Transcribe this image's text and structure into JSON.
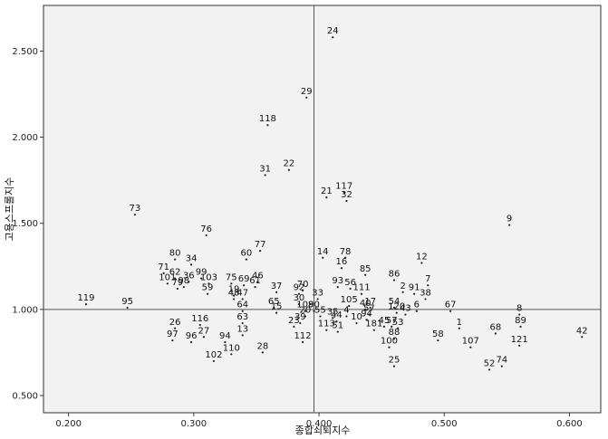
{
  "chart_data": {
    "type": "scatter",
    "title": "",
    "xlabel": "종합쇠퇴지수",
    "ylabel": "고용스프롤지수",
    "xlim": [
      0.18,
      0.625
    ],
    "ylim": [
      0.4,
      2.765
    ],
    "xticks": [
      0.2,
      0.3,
      0.4,
      0.5,
      0.6
    ],
    "xtick_labels": [
      "0.200",
      "0.300",
      "0.400",
      "0.500",
      "0.600"
    ],
    "yticks": [
      0.5,
      1.0,
      1.5,
      2.0,
      2.5
    ],
    "ytick_labels": [
      "0.500",
      "1.000",
      "1.500",
      "2.000",
      "2.500"
    ],
    "reference_lines": {
      "x": 0.396,
      "y": 1.0
    },
    "grid": false,
    "points": [
      {
        "label": "24",
        "x": 0.411,
        "y": 2.58
      },
      {
        "label": "29",
        "x": 0.39,
        "y": 2.23
      },
      {
        "label": "118",
        "x": 0.359,
        "y": 2.07
      },
      {
        "label": "22",
        "x": 0.376,
        "y": 1.81
      },
      {
        "label": "31",
        "x": 0.357,
        "y": 1.78
      },
      {
        "label": "117",
        "x": 0.42,
        "y": 1.68
      },
      {
        "label": "21",
        "x": 0.406,
        "y": 1.65
      },
      {
        "label": "32",
        "x": 0.422,
        "y": 1.63
      },
      {
        "label": "73",
        "x": 0.253,
        "y": 1.55
      },
      {
        "label": "9",
        "x": 0.552,
        "y": 1.49
      },
      {
        "label": "76",
        "x": 0.31,
        "y": 1.43
      },
      {
        "label": "77",
        "x": 0.353,
        "y": 1.34
      },
      {
        "label": "80",
        "x": 0.285,
        "y": 1.29
      },
      {
        "label": "34",
        "x": 0.298,
        "y": 1.26
      },
      {
        "label": "60",
        "x": 0.342,
        "y": 1.29
      },
      {
        "label": "14",
        "x": 0.403,
        "y": 1.3
      },
      {
        "label": "78",
        "x": 0.421,
        "y": 1.3
      },
      {
        "label": "12",
        "x": 0.482,
        "y": 1.27
      },
      {
        "label": "71",
        "x": 0.276,
        "y": 1.21
      },
      {
        "label": "16",
        "x": 0.418,
        "y": 1.24
      },
      {
        "label": "62",
        "x": 0.285,
        "y": 1.18
      },
      {
        "label": "99",
        "x": 0.306,
        "y": 1.18
      },
      {
        "label": "85",
        "x": 0.437,
        "y": 1.2
      },
      {
        "label": "86",
        "x": 0.46,
        "y": 1.17
      },
      {
        "label": "7",
        "x": 0.487,
        "y": 1.14
      },
      {
        "label": "101",
        "x": 0.279,
        "y": 1.15
      },
      {
        "label": "36",
        "x": 0.296,
        "y": 1.16
      },
      {
        "label": "103",
        "x": 0.312,
        "y": 1.15
      },
      {
        "label": "75",
        "x": 0.33,
        "y": 1.15
      },
      {
        "label": "69",
        "x": 0.34,
        "y": 1.14
      },
      {
        "label": "46",
        "x": 0.351,
        "y": 1.16
      },
      {
        "label": "79",
        "x": 0.287,
        "y": 1.12
      },
      {
        "label": "98",
        "x": 0.292,
        "y": 1.13
      },
      {
        "label": "59",
        "x": 0.311,
        "y": 1.09
      },
      {
        "label": "61",
        "x": 0.349,
        "y": 1.13
      },
      {
        "label": "70",
        "x": 0.387,
        "y": 1.11
      },
      {
        "label": "93",
        "x": 0.415,
        "y": 1.13
      },
      {
        "label": "56",
        "x": 0.425,
        "y": 1.12
      },
      {
        "label": "2",
        "x": 0.467,
        "y": 1.1
      },
      {
        "label": "91",
        "x": 0.476,
        "y": 1.09
      },
      {
        "label": "37",
        "x": 0.366,
        "y": 1.1
      },
      {
        "label": "92",
        "x": 0.384,
        "y": 1.09
      },
      {
        "label": "111",
        "x": 0.434,
        "y": 1.09
      },
      {
        "label": "38",
        "x": 0.485,
        "y": 1.06
      },
      {
        "label": "19",
        "x": 0.332,
        "y": 1.08
      },
      {
        "label": "48",
        "x": 0.332,
        "y": 1.06
      },
      {
        "label": "47",
        "x": 0.339,
        "y": 1.06
      },
      {
        "label": "33",
        "x": 0.399,
        "y": 1.06
      },
      {
        "label": "119",
        "x": 0.214,
        "y": 1.03
      },
      {
        "label": "95",
        "x": 0.247,
        "y": 1.01
      },
      {
        "label": "30",
        "x": 0.384,
        "y": 1.03
      },
      {
        "label": "65",
        "x": 0.364,
        "y": 1.01
      },
      {
        "label": "105",
        "x": 0.424,
        "y": 1.02
      },
      {
        "label": "64",
        "x": 0.339,
        "y": 0.99
      },
      {
        "label": "15",
        "x": 0.366,
        "y": 0.98
      },
      {
        "label": "108",
        "x": 0.389,
        "y": 0.99
      },
      {
        "label": "90",
        "x": 0.396,
        "y": 0.99
      },
      {
        "label": "40",
        "x": 0.437,
        "y": 1.0
      },
      {
        "label": "17",
        "x": 0.441,
        "y": 1.01
      },
      {
        "label": "54",
        "x": 0.46,
        "y": 1.01
      },
      {
        "label": "67",
        "x": 0.505,
        "y": 0.99
      },
      {
        "label": "8",
        "x": 0.56,
        "y": 0.97
      },
      {
        "label": "120",
        "x": 0.462,
        "y": 0.98
      },
      {
        "label": "6",
        "x": 0.478,
        "y": 0.99
      },
      {
        "label": "20",
        "x": 0.389,
        "y": 0.96
      },
      {
        "label": "55",
        "x": 0.401,
        "y": 0.96
      },
      {
        "label": "35",
        "x": 0.411,
        "y": 0.95
      },
      {
        "label": "4",
        "x": 0.422,
        "y": 0.96
      },
      {
        "label": "57",
        "x": 0.44,
        "y": 0.97
      },
      {
        "label": "43",
        "x": 0.469,
        "y": 0.97
      },
      {
        "label": "63",
        "x": 0.339,
        "y": 0.92
      },
      {
        "label": "116",
        "x": 0.305,
        "y": 0.91
      },
      {
        "label": "39",
        "x": 0.385,
        "y": 0.92
      },
      {
        "label": "23",
        "x": 0.38,
        "y": 0.9
      },
      {
        "label": "44",
        "x": 0.414,
        "y": 0.93
      },
      {
        "label": "94",
        "x": 0.438,
        "y": 0.94
      },
      {
        "label": "10",
        "x": 0.43,
        "y": 0.92
      },
      {
        "label": "89",
        "x": 0.561,
        "y": 0.9
      },
      {
        "label": "26",
        "x": 0.285,
        "y": 0.89
      },
      {
        "label": "113",
        "x": 0.406,
        "y": 0.88
      },
      {
        "label": "51",
        "x": 0.415,
        "y": 0.87
      },
      {
        "label": "45",
        "x": 0.452,
        "y": 0.9
      },
      {
        "label": "57b",
        "x": 0.458,
        "y": 0.9
      },
      {
        "label": "53",
        "x": 0.463,
        "y": 0.89
      },
      {
        "label": "1",
        "x": 0.512,
        "y": 0.89
      },
      {
        "label": "68",
        "x": 0.541,
        "y": 0.86
      },
      {
        "label": "181",
        "x": 0.444,
        "y": 0.88
      },
      {
        "label": "13",
        "x": 0.339,
        "y": 0.85
      },
      {
        "label": "27",
        "x": 0.308,
        "y": 0.84
      },
      {
        "label": "97",
        "x": 0.283,
        "y": 0.82
      },
      {
        "label": "96",
        "x": 0.298,
        "y": 0.81
      },
      {
        "label": "112",
        "x": 0.387,
        "y": 0.81
      },
      {
        "label": "88",
        "x": 0.46,
        "y": 0.83
      },
      {
        "label": "58",
        "x": 0.495,
        "y": 0.82
      },
      {
        "label": "121",
        "x": 0.56,
        "y": 0.79
      },
      {
        "label": "42",
        "x": 0.61,
        "y": 0.84
      },
      {
        "label": "94b",
        "x": 0.325,
        "y": 0.81
      },
      {
        "label": "107",
        "x": 0.521,
        "y": 0.78
      },
      {
        "label": "100",
        "x": 0.456,
        "y": 0.78
      },
      {
        "label": "28",
        "x": 0.355,
        "y": 0.75
      },
      {
        "label": "110",
        "x": 0.33,
        "y": 0.74
      },
      {
        "label": "102",
        "x": 0.316,
        "y": 0.7
      },
      {
        "label": "25",
        "x": 0.46,
        "y": 0.67
      },
      {
        "label": "74",
        "x": 0.546,
        "y": 0.67
      },
      {
        "label": "52",
        "x": 0.536,
        "y": 0.65
      }
    ]
  }
}
